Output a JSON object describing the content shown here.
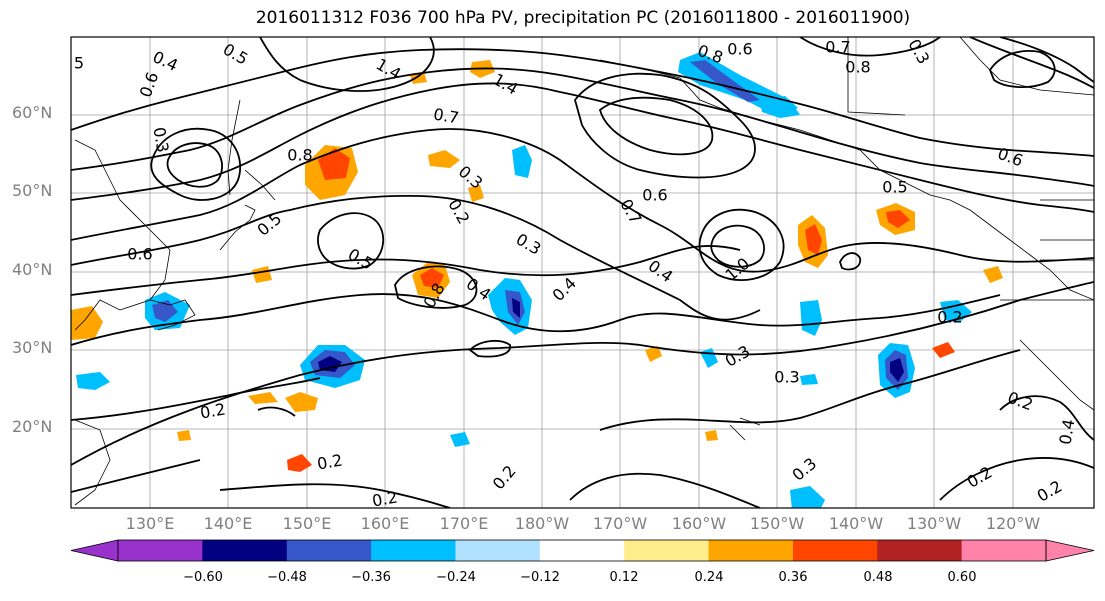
{
  "title": "2016011312 F036 700 hPa PV, precipitation PC (2016011800 - 2016011900)",
  "lat_labels": [
    "60°N",
    "50°N",
    "40°N",
    "30°N",
    "20°N"
  ],
  "lon_labels": [
    "130°E",
    "140°E",
    "150°E",
    "160°E",
    "170°E",
    "180°W",
    "170°W",
    "160°W",
    "150°W",
    "140°W",
    "130°W",
    "120°W"
  ],
  "contour_labels": [
    "5",
    "0.4",
    "0.6",
    "0.5",
    "1.4",
    "1.4",
    "0.7",
    "0.8",
    "0.6",
    "0.7",
    "0.8",
    "0.3",
    "0.8",
    "0.6",
    "0.5",
    "0.3",
    "0.3",
    "0.2",
    "0.3",
    "0.4",
    "0.5",
    "0.4",
    "0.6",
    "0.7",
    "0.4",
    "1.0",
    "0.5",
    "0.6",
    "0.8",
    "0.2",
    "0.3",
    "0.3",
    "0.2",
    "0.2",
    "0.2",
    "0.2",
    "0.3",
    "0.2",
    "0.2",
    "0.2",
    "0.4"
  ],
  "colorbar": {
    "ticks": [
      "−0.60",
      "−0.48",
      "−0.36",
      "−0.24",
      "−0.12",
      "0.12",
      "0.24",
      "0.36",
      "0.48",
      "0.60"
    ],
    "colors": [
      "#9932cc",
      "#000080",
      "#3657c9",
      "#00bfff",
      "#b0e2ff",
      "#ffffff",
      "#ffec8b",
      "#ffa500",
      "#ff4500",
      "#b22222",
      "#ff82ab"
    ]
  },
  "colors": {
    "neg_strong": "#000080",
    "neg_mid": "#3657c9",
    "neg_light": "#00bfff",
    "pos_light": "#ffec8b",
    "pos_mid": "#ffa500",
    "pos_strong": "#ff4500"
  }
}
